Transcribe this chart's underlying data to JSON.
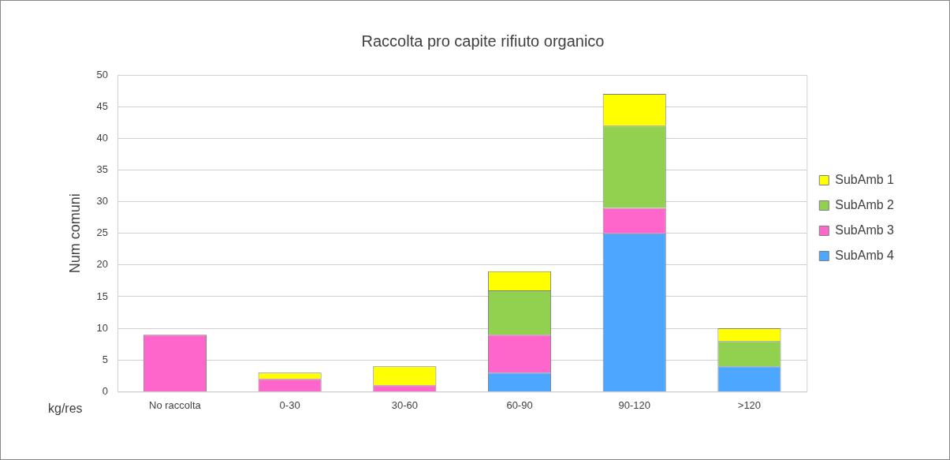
{
  "chart_data": {
    "type": "bar",
    "title": "Raccolta pro capite rifiuto organico",
    "xlabel": "kg/res",
    "ylabel": "Num comuni",
    "categories": [
      "No raccolta",
      "0-30",
      "30-60",
      "60-90",
      "90-120",
      ">120"
    ],
    "stacked": true,
    "series": [
      {
        "name": "SubAmb 4",
        "color": "#4da6ff",
        "values": [
          0,
          0,
          0,
          3,
          25,
          4
        ]
      },
      {
        "name": "SubAmb 3",
        "color": "#ff66cc",
        "values": [
          9,
          2,
          1,
          6,
          4,
          0
        ]
      },
      {
        "name": "SubAmb 2",
        "color": "#92d050",
        "values": [
          0,
          0,
          0,
          7,
          13,
          4
        ]
      },
      {
        "name": "SubAmb 1",
        "color": "#ffff00",
        "values": [
          0,
          1,
          3,
          3,
          5,
          2
        ]
      }
    ],
    "ylim": [
      0,
      50
    ],
    "yticks": [
      0,
      5,
      10,
      15,
      20,
      25,
      30,
      35,
      40,
      45,
      50
    ],
    "grid": "y",
    "legend": "right"
  }
}
